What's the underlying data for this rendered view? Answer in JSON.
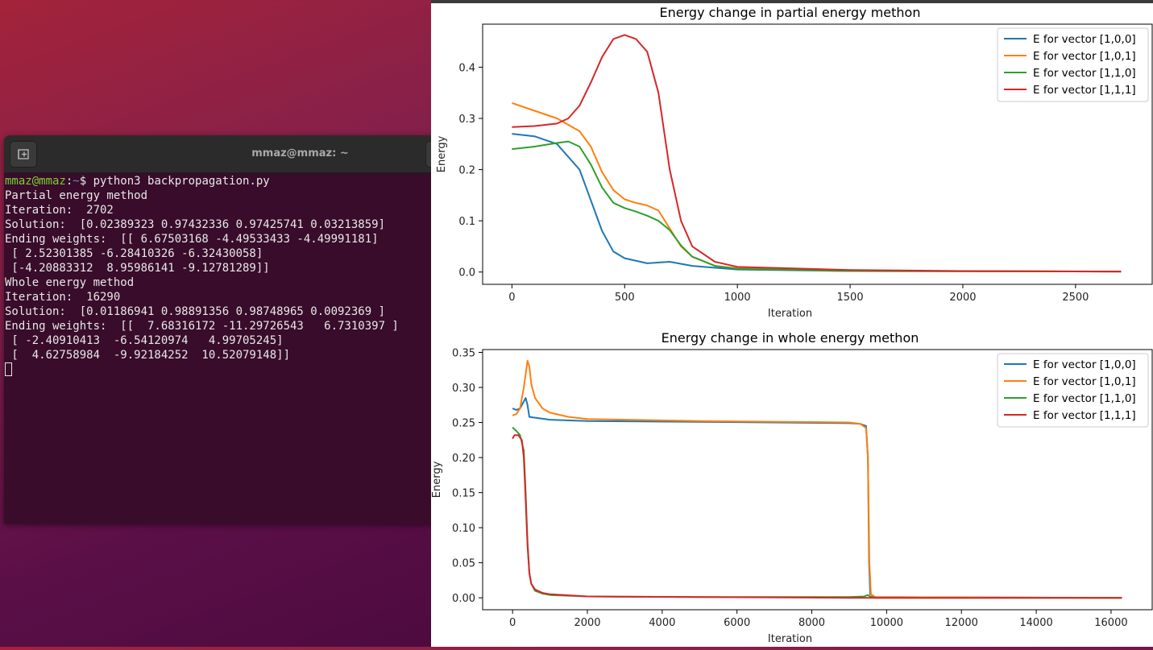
{
  "terminal": {
    "title": "mmaz@mmaz: ~",
    "prompt_user": "mmaz@mmaz",
    "prompt_sep": ":",
    "prompt_path": "~",
    "prompt_symbol": "$ ",
    "command": "python3 backpropagation.py",
    "lines": [
      "Partial energy method",
      "Iteration:  2702",
      "Solution:  [0.02389323 0.97432336 0.97425741 0.03213859]",
      "Ending weights:  [[ 6.67503168 -4.49533433 -4.49991181]",
      " [ 2.52301385 -6.28410326 -6.32430058]",
      " [-4.20883312  8.95986141 -9.12781289]]",
      "Whole energy method",
      "Iteration:  16290",
      "Solution:  [0.01186941 0.98891356 0.98748965 0.0092369 ]",
      "Ending weights:  [[  7.68316172 -11.29726543   6.7310397 ]",
      " [ -2.40910413  -6.54120974   4.99705245]",
      " [  4.62758984  -9.92184252  10.52079148]]"
    ]
  },
  "chart_data": [
    {
      "type": "line",
      "title": "Energy change in partial energy methon",
      "xlabel": "Iteration",
      "ylabel": "Energy",
      "xlim": [
        -130,
        2840
      ],
      "ylim": [
        -0.024,
        0.484
      ],
      "xticks": [
        0,
        500,
        1000,
        1500,
        2000,
        2500
      ],
      "yticks": [
        0.0,
        0.1,
        0.2,
        0.3,
        0.4
      ],
      "ytick_labels": [
        "0.0",
        "0.1",
        "0.2",
        "0.3",
        "0.4"
      ],
      "legend": "top-right",
      "series": [
        {
          "name": "E for vector [1,0,0]",
          "color": "#1f77b4",
          "points": [
            [
              0,
              0.27
            ],
            [
              100,
              0.265
            ],
            [
              200,
              0.25
            ],
            [
              300,
              0.2
            ],
            [
              350,
              0.14
            ],
            [
              400,
              0.08
            ],
            [
              450,
              0.04
            ],
            [
              500,
              0.027
            ],
            [
              600,
              0.017
            ],
            [
              700,
              0.02
            ],
            [
              800,
              0.012
            ],
            [
              1000,
              0.005
            ],
            [
              1500,
              0.002
            ],
            [
              2702,
              0.001
            ]
          ]
        },
        {
          "name": "E for vector [1,0,1]",
          "color": "#ff7f0e",
          "points": [
            [
              0,
              0.33
            ],
            [
              100,
              0.315
            ],
            [
              200,
              0.3
            ],
            [
              300,
              0.275
            ],
            [
              350,
              0.245
            ],
            [
              400,
              0.195
            ],
            [
              450,
              0.16
            ],
            [
              500,
              0.142
            ],
            [
              550,
              0.135
            ],
            [
              600,
              0.13
            ],
            [
              650,
              0.12
            ],
            [
              700,
              0.085
            ],
            [
              750,
              0.05
            ],
            [
              800,
              0.03
            ],
            [
              900,
              0.012
            ],
            [
              1000,
              0.007
            ],
            [
              1500,
              0.002
            ],
            [
              2702,
              0.001
            ]
          ]
        },
        {
          "name": "E for vector [1,1,0]",
          "color": "#2ca02c",
          "points": [
            [
              0,
              0.24
            ],
            [
              100,
              0.245
            ],
            [
              200,
              0.252
            ],
            [
              250,
              0.255
            ],
            [
              300,
              0.245
            ],
            [
              350,
              0.21
            ],
            [
              400,
              0.165
            ],
            [
              450,
              0.135
            ],
            [
              500,
              0.125
            ],
            [
              550,
              0.118
            ],
            [
              600,
              0.11
            ],
            [
              650,
              0.1
            ],
            [
              700,
              0.082
            ],
            [
              750,
              0.052
            ],
            [
              800,
              0.03
            ],
            [
              900,
              0.012
            ],
            [
              1000,
              0.006
            ],
            [
              1500,
              0.002
            ],
            [
              2702,
              0.001
            ]
          ]
        },
        {
          "name": "E for vector [1,1,1]",
          "color": "#d62728",
          "points": [
            [
              0,
              0.283
            ],
            [
              100,
              0.285
            ],
            [
              200,
              0.29
            ],
            [
              250,
              0.3
            ],
            [
              300,
              0.325
            ],
            [
              350,
              0.37
            ],
            [
              400,
              0.42
            ],
            [
              450,
              0.455
            ],
            [
              500,
              0.463
            ],
            [
              550,
              0.455
            ],
            [
              600,
              0.43
            ],
            [
              650,
              0.35
            ],
            [
              700,
              0.2
            ],
            [
              750,
              0.1
            ],
            [
              800,
              0.05
            ],
            [
              900,
              0.02
            ],
            [
              1000,
              0.01
            ],
            [
              1500,
              0.004
            ],
            [
              2000,
              0.002
            ],
            [
              2702,
              0.001
            ]
          ]
        }
      ]
    },
    {
      "type": "line",
      "title": "Energy change in whole energy methon",
      "xlabel": "Iteration",
      "ylabel": "Energy",
      "xlim": [
        -800,
        17100
      ],
      "ylim": [
        -0.017,
        0.354
      ],
      "xticks": [
        0,
        2000,
        4000,
        6000,
        8000,
        10000,
        12000,
        14000,
        16000
      ],
      "yticks": [
        0.0,
        0.05,
        0.1,
        0.15,
        0.2,
        0.25,
        0.3,
        0.35
      ],
      "ytick_labels": [
        "0.00",
        "0.05",
        "0.10",
        "0.15",
        "0.20",
        "0.25",
        "0.30",
        "0.35"
      ],
      "legend": "top-right",
      "series": [
        {
          "name": "E for vector [1,0,0]",
          "color": "#1f77b4",
          "points": [
            [
              0,
              0.27
            ],
            [
              100,
              0.268
            ],
            [
              200,
              0.27
            ],
            [
              300,
              0.28
            ],
            [
              350,
              0.285
            ],
            [
              400,
              0.275
            ],
            [
              450,
              0.258
            ],
            [
              1000,
              0.254
            ],
            [
              2000,
              0.252
            ],
            [
              5000,
              0.251
            ],
            [
              9000,
              0.249
            ],
            [
              9300,
              0.248
            ],
            [
              9450,
              0.245
            ],
            [
              9500,
              0.2
            ],
            [
              9530,
              0.05
            ],
            [
              9560,
              0.005
            ],
            [
              9700,
              0.001
            ],
            [
              16290,
              0.0
            ]
          ]
        },
        {
          "name": "E for vector [1,0,1]",
          "color": "#ff7f0e",
          "points": [
            [
              0,
              0.26
            ],
            [
              100,
              0.262
            ],
            [
              200,
              0.27
            ],
            [
              300,
              0.3
            ],
            [
              400,
              0.338
            ],
            [
              450,
              0.33
            ],
            [
              500,
              0.305
            ],
            [
              600,
              0.285
            ],
            [
              800,
              0.27
            ],
            [
              1000,
              0.264
            ],
            [
              1500,
              0.258
            ],
            [
              2000,
              0.255
            ],
            [
              5000,
              0.252
            ],
            [
              9000,
              0.25
            ],
            [
              9300,
              0.248
            ],
            [
              9450,
              0.242
            ],
            [
              9500,
              0.2
            ],
            [
              9540,
              0.05
            ],
            [
              9580,
              0.005
            ],
            [
              9700,
              0.001
            ],
            [
              16290,
              0.0
            ]
          ]
        },
        {
          "name": "E for vector [1,1,0]",
          "color": "#2ca02c",
          "points": [
            [
              0,
              0.243
            ],
            [
              100,
              0.238
            ],
            [
              200,
              0.232
            ],
            [
              300,
              0.21
            ],
            [
              350,
              0.15
            ],
            [
              400,
              0.08
            ],
            [
              450,
              0.035
            ],
            [
              500,
              0.02
            ],
            [
              600,
              0.01
            ],
            [
              800,
              0.006
            ],
            [
              1000,
              0.004
            ],
            [
              2000,
              0.002
            ],
            [
              5000,
              0.001
            ],
            [
              9000,
              0.001
            ],
            [
              9400,
              0.002
            ],
            [
              9500,
              0.004
            ],
            [
              9550,
              0.002
            ],
            [
              9700,
              0.0
            ],
            [
              16290,
              0.0
            ]
          ]
        },
        {
          "name": "E for vector [1,1,1]",
          "color": "#d62728",
          "points": [
            [
              0,
              0.227
            ],
            [
              50,
              0.232
            ],
            [
              150,
              0.232
            ],
            [
              250,
              0.225
            ],
            [
              300,
              0.2
            ],
            [
              350,
              0.14
            ],
            [
              400,
              0.075
            ],
            [
              450,
              0.035
            ],
            [
              500,
              0.02
            ],
            [
              600,
              0.012
            ],
            [
              800,
              0.007
            ],
            [
              1000,
              0.005
            ],
            [
              2000,
              0.002
            ],
            [
              5000,
              0.001
            ],
            [
              9000,
              0.0
            ],
            [
              16290,
              0.0
            ]
          ]
        }
      ]
    }
  ]
}
